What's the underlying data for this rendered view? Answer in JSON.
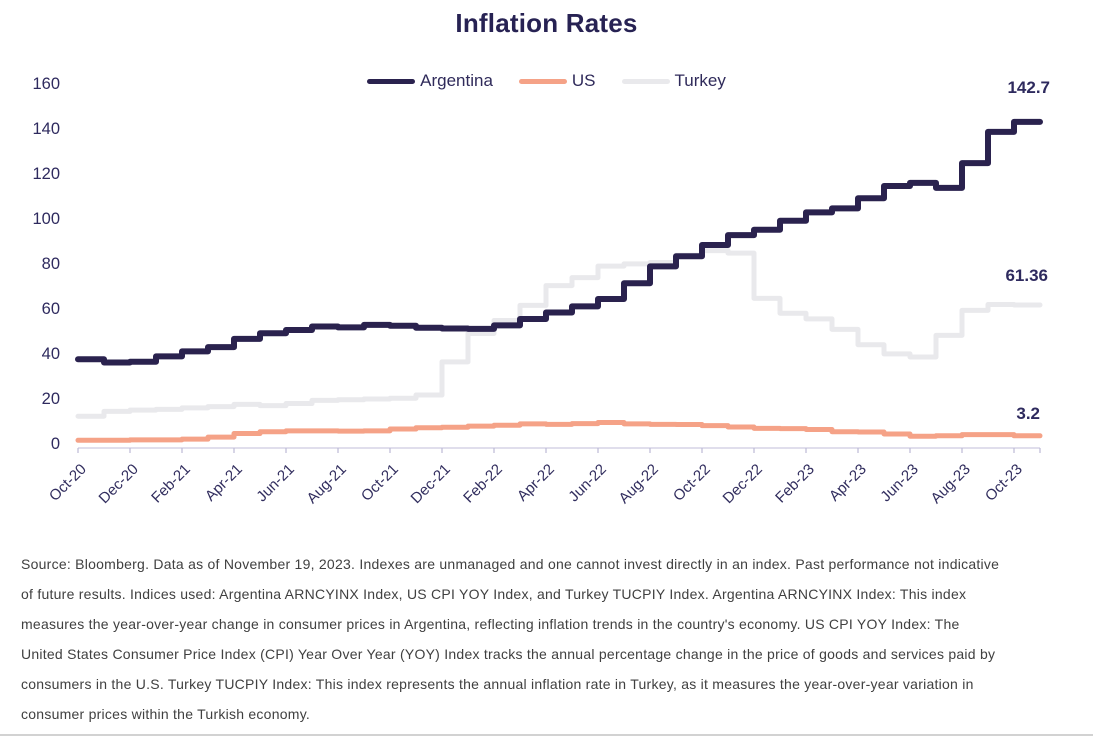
{
  "chart_data": {
    "type": "line",
    "line_style": "step-after",
    "title": "Inflation Rates",
    "grid": false,
    "legend_position": "top",
    "ylim": [
      0,
      160
    ],
    "y_ticks": [
      0,
      20,
      40,
      60,
      80,
      100,
      120,
      140,
      160
    ],
    "x": [
      "Oct-20",
      "Nov-20",
      "Dec-20",
      "Jan-21",
      "Feb-21",
      "Mar-21",
      "Apr-21",
      "May-21",
      "Jun-21",
      "Jul-21",
      "Aug-21",
      "Sep-21",
      "Oct-21",
      "Nov-21",
      "Dec-21",
      "Jan-22",
      "Feb-22",
      "Mar-22",
      "Apr-22",
      "May-22",
      "Jun-22",
      "Jul-22",
      "Aug-22",
      "Sep-22",
      "Oct-22",
      "Nov-22",
      "Dec-22",
      "Jan-23",
      "Feb-23",
      "Mar-23",
      "Apr-23",
      "May-23",
      "Jun-23",
      "Jul-23",
      "Aug-23",
      "Sep-23",
      "Oct-23"
    ],
    "x_tick_labels": [
      "Oct-20",
      "Dec-20",
      "Feb-21",
      "Apr-21",
      "Jun-21",
      "Aug-21",
      "Oct-21",
      "Dec-21",
      "Feb-22",
      "Apr-22",
      "Jun-22",
      "Aug-22",
      "Oct-22",
      "Dec-22",
      "Feb-23",
      "Apr-23",
      "Jun-23",
      "Aug-23",
      "Oct-23"
    ],
    "series": [
      {
        "name": "Argentina",
        "color": "#2A224E",
        "end_label": "142.7",
        "values": [
          37.2,
          35.8,
          36.1,
          38.5,
          40.7,
          42.6,
          46.3,
          48.8,
          50.2,
          51.8,
          51.4,
          52.5,
          52.1,
          51.2,
          50.9,
          50.7,
          52.3,
          55.1,
          58.0,
          60.7,
          64.0,
          71.0,
          78.5,
          83.0,
          88.0,
          92.4,
          94.8,
          98.8,
          102.5,
          104.3,
          108.8,
          114.2,
          115.6,
          113.4,
          124.4,
          138.3,
          142.7
        ]
      },
      {
        "name": "US",
        "color": "#F5A287",
        "end_label": "3.2",
        "values": [
          1.2,
          1.2,
          1.4,
          1.4,
          1.7,
          2.6,
          4.2,
          5.0,
          5.4,
          5.4,
          5.3,
          5.4,
          6.2,
          6.8,
          7.0,
          7.5,
          7.9,
          8.5,
          8.3,
          8.6,
          9.1,
          8.5,
          8.3,
          8.2,
          7.7,
          7.1,
          6.5,
          6.4,
          6.0,
          5.0,
          4.9,
          4.0,
          3.0,
          3.2,
          3.7,
          3.7,
          3.2
        ]
      },
      {
        "name": "Turkey",
        "color": "#E9E9EC",
        "end_label": "61.36",
        "values": [
          11.89,
          14.03,
          14.6,
          14.97,
          15.61,
          16.19,
          17.14,
          16.59,
          17.53,
          18.95,
          19.25,
          19.58,
          19.89,
          21.31,
          36.08,
          48.69,
          54.44,
          61.14,
          69.97,
          73.5,
          78.62,
          79.6,
          80.21,
          83.45,
          85.51,
          84.39,
          64.27,
          57.68,
          55.18,
          50.51,
          43.68,
          39.59,
          38.21,
          47.83,
          58.94,
          61.53,
          61.36
        ]
      }
    ],
    "axis_color": "#D5D3E6",
    "tick_color": "#BCB9D6"
  },
  "footer": {
    "lines": [
      "Source: Bloomberg. Data as of November 19, 2023. Indexes are unmanaged and one cannot invest directly in an index. Past performance not indicative",
      "of future results. Indices used: Argentina ARNCYINX Index, US CPI YOY Index, and Turkey TUCPIY Index.  Argentina ARNCYINX Index: This index",
      "measures the year-over-year change in consumer prices in Argentina, reflecting inflation trends in the country's economy. US CPI YOY Index: The",
      "United States Consumer Price Index (CPI) Year Over Year (YOY) Index tracks the annual percentage change in the price of goods and services paid by",
      "consumers in the U.S. Turkey TUCPIY Index: This index represents the annual inflation rate in Turkey, as it measures the year-over-year variation in",
      "consumer prices within the Turkish economy."
    ]
  }
}
